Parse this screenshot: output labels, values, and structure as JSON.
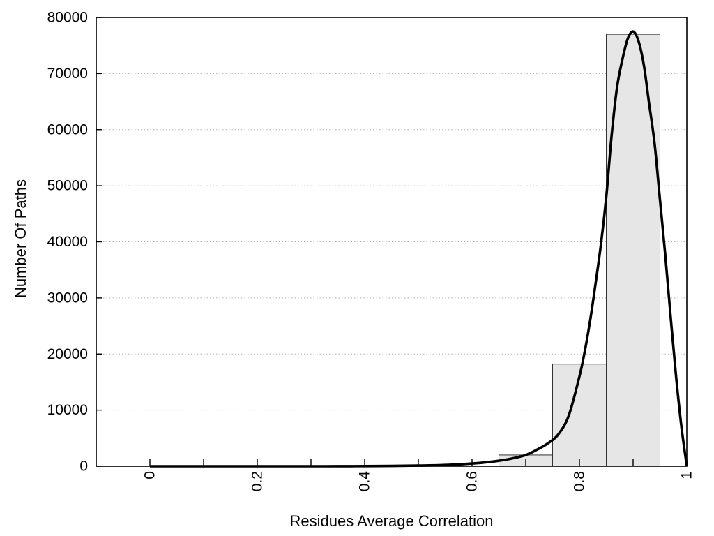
{
  "chart_data": {
    "type": "bar",
    "subtype": "histogram_with_density_curve",
    "title": "",
    "xlabel": "Residues Average Correlation",
    "ylabel": "Number Of Paths",
    "xlim": [
      -0.1,
      1.0
    ],
    "ylim": [
      0,
      80000
    ],
    "legend": "none",
    "grid": {
      "horizontal": true,
      "vertical": false,
      "style": "dotted"
    },
    "x_ticks": [
      {
        "v": 0.0,
        "label": "0"
      },
      {
        "v": 0.1,
        "label": ""
      },
      {
        "v": 0.2,
        "label": "0.2"
      },
      {
        "v": 0.3,
        "label": ""
      },
      {
        "v": 0.4,
        "label": "0.4"
      },
      {
        "v": 0.5,
        "label": ""
      },
      {
        "v": 0.6,
        "label": "0.6"
      },
      {
        "v": 0.7,
        "label": ""
      },
      {
        "v": 0.8,
        "label": "0.8"
      },
      {
        "v": 0.9,
        "label": ""
      },
      {
        "v": 1.0,
        "label": "1"
      }
    ],
    "y_ticks": [
      {
        "v": 0,
        "label": "0"
      },
      {
        "v": 10000,
        "label": "10000"
      },
      {
        "v": 20000,
        "label": "20000"
      },
      {
        "v": 30000,
        "label": "30000"
      },
      {
        "v": 40000,
        "label": "40000"
      },
      {
        "v": 50000,
        "label": "50000"
      },
      {
        "v": 60000,
        "label": "60000"
      },
      {
        "v": 70000,
        "label": "70000"
      },
      {
        "v": 80000,
        "label": "80000"
      }
    ],
    "bars": [
      {
        "x0": 0.65,
        "x1": 0.75,
        "count": 2000
      },
      {
        "x0": 0.75,
        "x1": 0.85,
        "count": 18200
      },
      {
        "x0": 0.85,
        "x1": 0.95,
        "count": 77000
      }
    ],
    "curve_points": [
      [
        0.0,
        0
      ],
      [
        0.05,
        0
      ],
      [
        0.1,
        0
      ],
      [
        0.15,
        0
      ],
      [
        0.2,
        0
      ],
      [
        0.25,
        0
      ],
      [
        0.3,
        0
      ],
      [
        0.35,
        10
      ],
      [
        0.4,
        25
      ],
      [
        0.45,
        55
      ],
      [
        0.5,
        110
      ],
      [
        0.55,
        220
      ],
      [
        0.58,
        350
      ],
      [
        0.61,
        550
      ],
      [
        0.64,
        850
      ],
      [
        0.67,
        1300
      ],
      [
        0.7,
        2000
      ],
      [
        0.72,
        2900
      ],
      [
        0.74,
        4000
      ],
      [
        0.76,
        5600
      ],
      [
        0.78,
        9000
      ],
      [
        0.8,
        16000
      ],
      [
        0.81,
        20500
      ],
      [
        0.82,
        26000
      ],
      [
        0.83,
        32500
      ],
      [
        0.84,
        39500
      ],
      [
        0.85,
        48000
      ],
      [
        0.86,
        59000
      ],
      [
        0.87,
        67500
      ],
      [
        0.88,
        72500
      ],
      [
        0.89,
        76200
      ],
      [
        0.9,
        77500
      ],
      [
        0.91,
        75800
      ],
      [
        0.92,
        71500
      ],
      [
        0.93,
        64500
      ],
      [
        0.94,
        57500
      ],
      [
        0.95,
        47500
      ],
      [
        0.96,
        37500
      ],
      [
        0.97,
        26500
      ],
      [
        0.98,
        16000
      ],
      [
        0.99,
        7000
      ],
      [
        1.0,
        0
      ]
    ],
    "colors": {
      "background": "#ffffff",
      "bar_fill": "#e6e6e6",
      "bar_border": "#333333",
      "curve": "#000000",
      "grid": "#b3b3b3",
      "axis": "#000000",
      "text": "#000000"
    }
  }
}
